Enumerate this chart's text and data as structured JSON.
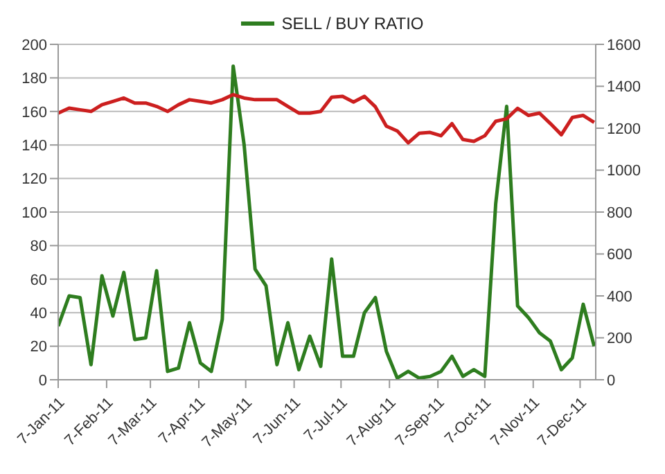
{
  "chart_data": {
    "type": "line",
    "x": [
      "2011-01-07",
      "2011-01-14",
      "2011-01-21",
      "2011-01-28",
      "2011-02-04",
      "2011-02-11",
      "2011-02-18",
      "2011-02-25",
      "2011-03-04",
      "2011-03-11",
      "2011-03-18",
      "2011-03-25",
      "2011-04-01",
      "2011-04-08",
      "2011-04-15",
      "2011-04-22",
      "2011-04-29",
      "2011-05-06",
      "2011-05-13",
      "2011-05-20",
      "2011-05-27",
      "2011-06-03",
      "2011-06-10",
      "2011-06-17",
      "2011-06-24",
      "2011-07-01",
      "2011-07-08",
      "2011-07-15",
      "2011-07-22",
      "2011-07-29",
      "2011-08-05",
      "2011-08-12",
      "2011-08-19",
      "2011-08-26",
      "2011-09-02",
      "2011-09-09",
      "2011-09-16",
      "2011-09-23",
      "2011-09-30",
      "2011-10-07",
      "2011-10-14",
      "2011-10-21",
      "2011-10-28",
      "2011-11-04",
      "2011-11-11",
      "2011-11-18",
      "2011-11-25",
      "2011-12-02",
      "2011-12-09",
      "2011-12-16"
    ],
    "series": [
      {
        "name": "SELL / BUY RATIO",
        "color": "#2e7d1f",
        "values": [
          32,
          50,
          49,
          9,
          62,
          38,
          64,
          24,
          25,
          65,
          5,
          7,
          34,
          10,
          5,
          36,
          187,
          140,
          66,
          56,
          9,
          34,
          6,
          26,
          8,
          72,
          14,
          14,
          40,
          49,
          17,
          1,
          5,
          1,
          2,
          5,
          14,
          2,
          6,
          2,
          105,
          163,
          44,
          37,
          28,
          23,
          6,
          13,
          45,
          20
        ]
      },
      {
        "color": "#cc1f1f",
        "axis": "y2",
        "values": [
          1272,
          1296,
          1288,
          1280,
          1312,
          1328,
          1344,
          1320,
          1320,
          1304,
          1280,
          1312,
          1336,
          1328,
          1320,
          1336,
          1360,
          1344,
          1336,
          1336,
          1336,
          1304,
          1272,
          1272,
          1280,
          1348,
          1352,
          1325,
          1352,
          1302,
          1210,
          1187,
          1130,
          1176,
          1180,
          1164,
          1222,
          1146,
          1137,
          1164,
          1233,
          1245,
          1295,
          1261,
          1272,
          1222,
          1169,
          1251,
          1261,
          1228
        ]
      }
    ],
    "xlim": [
      "2011-01-07",
      "2011-12-17"
    ],
    "xticks": [
      {
        "value": "2011-01-07",
        "label": "7-Jan-11"
      },
      {
        "value": "2011-02-07",
        "label": "7-Feb-11"
      },
      {
        "value": "2011-03-07",
        "label": "7-Mar-11"
      },
      {
        "value": "2011-04-07",
        "label": "7-Apr-11"
      },
      {
        "value": "2011-05-07",
        "label": "7-May-11"
      },
      {
        "value": "2011-06-07",
        "label": "7-Jun-11"
      },
      {
        "value": "2011-07-07",
        "label": "7-Jul-11"
      },
      {
        "value": "2011-08-07",
        "label": "7-Aug-11"
      },
      {
        "value": "2011-09-07",
        "label": "7-Sep-11"
      },
      {
        "value": "2011-10-07",
        "label": "7-Oct-11"
      },
      {
        "value": "2011-11-07",
        "label": "7-Nov-11"
      },
      {
        "value": "2011-12-07",
        "label": "7-Dec-11"
      }
    ],
    "ylim": [
      0,
      200
    ],
    "yticks": [
      0,
      20,
      40,
      60,
      80,
      100,
      120,
      140,
      160,
      180,
      200
    ],
    "y2lim": [
      0,
      1600
    ],
    "y2ticks": [
      0,
      200,
      400,
      600,
      800,
      1000,
      1200,
      1400,
      1600
    ],
    "grid": "y",
    "legend": "top",
    "marker": "none",
    "line_style": "solid"
  }
}
